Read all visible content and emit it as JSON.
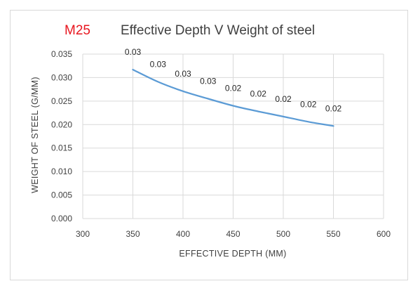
{
  "chart_data": {
    "type": "line",
    "title_prefix": "M25",
    "title": "Effective Depth V Weight of steel",
    "xlabel": "EFFECTIVE DEPTH (MM)",
    "ylabel": "WEIGHT OF STEEL (G/MM)",
    "xlim": [
      300,
      600
    ],
    "ylim": [
      0,
      0.035
    ],
    "x_ticks": [
      "300",
      "350",
      "400",
      "450",
      "500",
      "550",
      "600"
    ],
    "y_ticks": [
      "0.000",
      "0.005",
      "0.010",
      "0.015",
      "0.020",
      "0.025",
      "0.030",
      "0.035"
    ],
    "grid": true,
    "series": [
      {
        "color": "#5b9bd5",
        "x": [
          350,
          375,
          400,
          425,
          450,
          475,
          500,
          525,
          550
        ],
        "y": [
          0.0317,
          0.0291,
          0.0271,
          0.0255,
          0.024,
          0.0228,
          0.0217,
          0.0206,
          0.0197
        ],
        "data_labels": [
          "0.03",
          "0.03",
          "0.03",
          "0.03",
          "0.02",
          "0.02",
          "0.02",
          "0.02",
          "0.02"
        ]
      }
    ],
    "colors": {
      "title_prefix": "#e8161f",
      "grid": "#d9d9d9",
      "text": "#404040"
    }
  }
}
